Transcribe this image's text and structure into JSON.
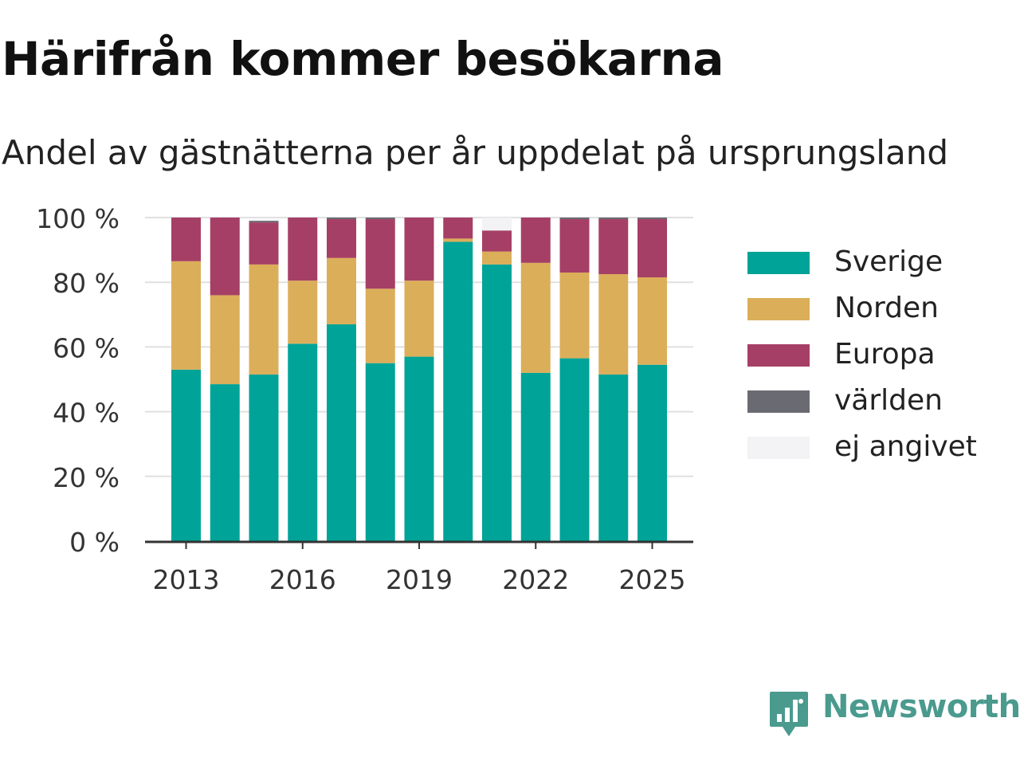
{
  "title": "Härifrån kommer besökarna",
  "subtitle": "Andel av gästnätterna per år uppdelat på ursprungsland",
  "brand": {
    "name": "Newsworthy",
    "icon": "newsworthy-logo-icon",
    "color": "#4a9a8e"
  },
  "chart_data": {
    "type": "bar",
    "stacked": true,
    "title": "Härifrån kommer besökarna",
    "subtitle": "Andel av gästnätterna per år uppdelat på ursprungsland",
    "xlabel": "",
    "ylabel": "",
    "ylim": [
      0,
      100
    ],
    "y_ticks": [
      0,
      20,
      40,
      60,
      80,
      100
    ],
    "y_tick_labels": [
      "0 %",
      "20 %",
      "40 %",
      "60 %",
      "80 %",
      "100 %"
    ],
    "x_ticks": [
      "2013",
      "2016",
      "2019",
      "2022",
      "2025"
    ],
    "grid": "horizontal",
    "legend_position": "right",
    "categories": [
      "2013",
      "2014",
      "2015",
      "2016",
      "2017",
      "2018",
      "2019",
      "2020",
      "2021",
      "2022",
      "2023",
      "2024",
      "2025"
    ],
    "series": [
      {
        "name": "Sverige",
        "color": "#00a398",
        "values": [
          53,
          48.5,
          51.5,
          61,
          67,
          55,
          57,
          92.5,
          85.5,
          52,
          56.5,
          51.5,
          54.5
        ]
      },
      {
        "name": "Norden",
        "color": "#dbae59",
        "values": [
          33.5,
          27.5,
          34,
          19.5,
          20.5,
          23,
          23.5,
          1,
          4,
          34,
          26.5,
          31,
          27
        ]
      },
      {
        "name": "Europa",
        "color": "#a63f65",
        "values": [
          13.5,
          24,
          13,
          19.5,
          12,
          21.5,
          19.5,
          6.5,
          6.5,
          14,
          16.5,
          17,
          18
        ]
      },
      {
        "name": "världen",
        "color": "#6a6a72",
        "values": [
          0,
          0,
          0.5,
          0,
          0.5,
          0.5,
          0,
          0,
          0,
          0,
          0.5,
          0.5,
          0.5
        ]
      },
      {
        "name": "ej angivet",
        "color": "#f3f2f4",
        "values": [
          0,
          0,
          0.5,
          0,
          0,
          0,
          0,
          0,
          4,
          0,
          0,
          0,
          0
        ]
      }
    ]
  }
}
